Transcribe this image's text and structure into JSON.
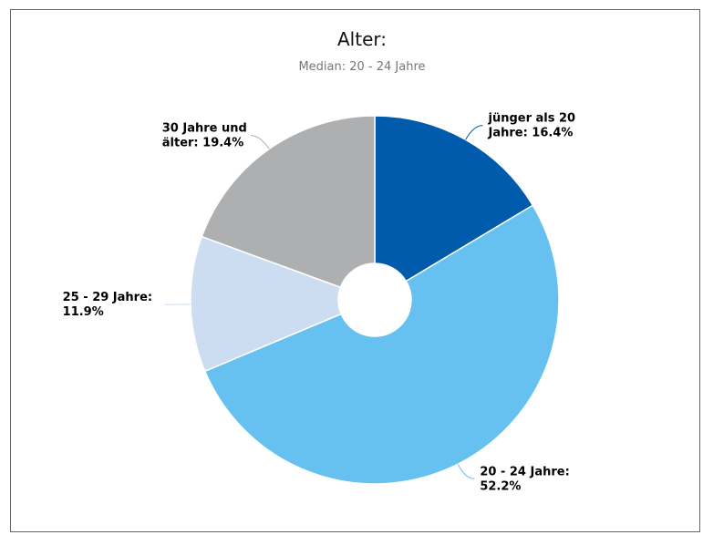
{
  "chart_data": {
    "type": "pie",
    "title": "Alter:",
    "subtitle": "Median: 20 - 24 Jahre",
    "donut": true,
    "legend": "none",
    "slices": [
      {
        "name": "jünger als 20 Jahre",
        "value": 16.4,
        "color": "#005BAC",
        "label_lines": [
          "jünger als 20",
          "Jahre: 16.4%"
        ]
      },
      {
        "name": "20 - 24 Jahre",
        "value": 52.2,
        "color": "#66C1F0",
        "label_lines": [
          "20 - 24 Jahre:",
          "52.2%"
        ]
      },
      {
        "name": "25 - 29 Jahre",
        "value": 11.9,
        "color": "#CCDDF1",
        "label_lines": [
          "25 - 29 Jahre:",
          "11.9%"
        ]
      },
      {
        "name": "30 Jahre und älter",
        "value": 19.4,
        "color": "#AEAFB1",
        "label_lines": [
          "30 Jahre und",
          "älter: 19.4%"
        ]
      }
    ]
  }
}
